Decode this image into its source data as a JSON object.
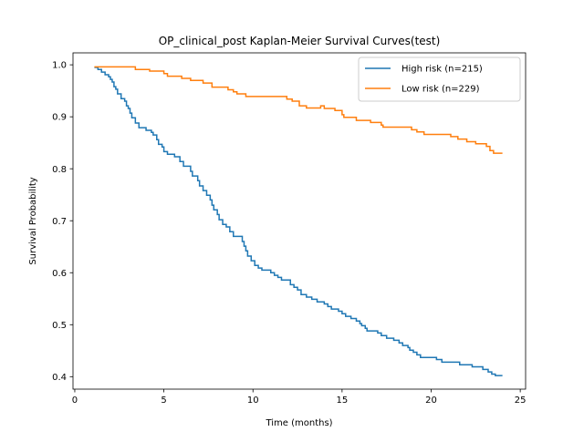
{
  "chart_data": {
    "type": "line",
    "step": true,
    "title": "OP_clinical_post Kaplan-Meier Survival Curves(test)",
    "xlabel": "Time (months)",
    "ylabel": "Survival Probability",
    "xlim": [
      -0.1,
      25.3
    ],
    "ylim": [
      0.376,
      1.023
    ],
    "x_ticks": [
      0,
      5,
      10,
      15,
      20,
      25
    ],
    "y_ticks": [
      0.4,
      0.5,
      0.6,
      0.7,
      0.8,
      0.9,
      1.0
    ],
    "x_tick_labels": [
      "0",
      "5",
      "10",
      "15",
      "20",
      "25"
    ],
    "y_tick_labels": [
      "0.4",
      "0.5",
      "0.6",
      "0.7",
      "0.8",
      "0.9",
      "1.0"
    ],
    "grid": false,
    "legend_position": "top-right",
    "series": [
      {
        "name": "High risk (n=215)",
        "color": "#1f77b4",
        "points": [
          [
            1.1,
            0.995
          ],
          [
            1.3,
            0.991
          ],
          [
            1.5,
            0.986
          ],
          [
            1.7,
            0.981
          ],
          [
            1.9,
            0.977
          ],
          [
            2.0,
            0.972
          ],
          [
            2.1,
            0.967
          ],
          [
            2.2,
            0.958
          ],
          [
            2.3,
            0.953
          ],
          [
            2.4,
            0.944
          ],
          [
            2.6,
            0.935
          ],
          [
            2.8,
            0.93
          ],
          [
            2.9,
            0.921
          ],
          [
            3.0,
            0.916
          ],
          [
            3.1,
            0.907
          ],
          [
            3.2,
            0.898
          ],
          [
            3.4,
            0.888
          ],
          [
            3.6,
            0.879
          ],
          [
            4.0,
            0.874
          ],
          [
            4.3,
            0.87
          ],
          [
            4.4,
            0.865
          ],
          [
            4.6,
            0.856
          ],
          [
            4.7,
            0.847
          ],
          [
            4.9,
            0.842
          ],
          [
            5.0,
            0.833
          ],
          [
            5.2,
            0.828
          ],
          [
            5.6,
            0.823
          ],
          [
            5.9,
            0.814
          ],
          [
            6.1,
            0.805
          ],
          [
            6.5,
            0.795
          ],
          [
            6.6,
            0.786
          ],
          [
            6.9,
            0.777
          ],
          [
            7.0,
            0.767
          ],
          [
            7.2,
            0.758
          ],
          [
            7.4,
            0.749
          ],
          [
            7.6,
            0.74
          ],
          [
            7.7,
            0.73
          ],
          [
            7.8,
            0.721
          ],
          [
            8.0,
            0.712
          ],
          [
            8.1,
            0.702
          ],
          [
            8.3,
            0.693
          ],
          [
            8.5,
            0.688
          ],
          [
            8.7,
            0.679
          ],
          [
            8.9,
            0.67
          ],
          [
            9.4,
            0.66
          ],
          [
            9.5,
            0.651
          ],
          [
            9.6,
            0.642
          ],
          [
            9.7,
            0.632
          ],
          [
            9.9,
            0.623
          ],
          [
            10.1,
            0.614
          ],
          [
            10.3,
            0.609
          ],
          [
            10.5,
            0.605
          ],
          [
            11.0,
            0.6
          ],
          [
            11.2,
            0.595
          ],
          [
            11.4,
            0.591
          ],
          [
            11.6,
            0.586
          ],
          [
            12.1,
            0.577
          ],
          [
            12.3,
            0.572
          ],
          [
            12.5,
            0.567
          ],
          [
            12.7,
            0.558
          ],
          [
            13.0,
            0.553
          ],
          [
            13.3,
            0.549
          ],
          [
            13.6,
            0.544
          ],
          [
            14.0,
            0.54
          ],
          [
            14.2,
            0.535
          ],
          [
            14.4,
            0.53
          ],
          [
            14.8,
            0.526
          ],
          [
            15.0,
            0.521
          ],
          [
            15.2,
            0.516
          ],
          [
            15.5,
            0.512
          ],
          [
            15.8,
            0.507
          ],
          [
            16.0,
            0.502
          ],
          [
            16.1,
            0.498
          ],
          [
            16.3,
            0.493
          ],
          [
            16.4,
            0.488
          ],
          [
            17.0,
            0.484
          ],
          [
            17.2,
            0.479
          ],
          [
            17.5,
            0.474
          ],
          [
            17.9,
            0.47
          ],
          [
            18.2,
            0.465
          ],
          [
            18.4,
            0.46
          ],
          [
            18.7,
            0.456
          ],
          [
            18.8,
            0.451
          ],
          [
            19.0,
            0.447
          ],
          [
            19.2,
            0.442
          ],
          [
            19.4,
            0.437
          ],
          [
            20.3,
            0.433
          ],
          [
            20.6,
            0.428
          ],
          [
            21.6,
            0.423
          ],
          [
            22.3,
            0.419
          ],
          [
            22.9,
            0.414
          ],
          [
            23.2,
            0.409
          ],
          [
            23.4,
            0.405
          ],
          [
            23.6,
            0.402
          ],
          [
            24.0,
            0.402
          ]
        ]
      },
      {
        "name": "Low risk (n=229)",
        "color": "#ff7f0e",
        "points": [
          [
            1.1,
            0.996
          ],
          [
            3.4,
            0.991
          ],
          [
            4.2,
            0.988
          ],
          [
            5.0,
            0.983
          ],
          [
            5.2,
            0.978
          ],
          [
            6.0,
            0.974
          ],
          [
            6.5,
            0.97
          ],
          [
            7.2,
            0.965
          ],
          [
            7.7,
            0.957
          ],
          [
            8.6,
            0.952
          ],
          [
            8.9,
            0.948
          ],
          [
            9.1,
            0.944
          ],
          [
            9.6,
            0.939
          ],
          [
            11.9,
            0.934
          ],
          [
            12.2,
            0.93
          ],
          [
            12.6,
            0.921
          ],
          [
            13.0,
            0.917
          ],
          [
            13.8,
            0.921
          ],
          [
            14.0,
            0.916
          ],
          [
            14.6,
            0.912
          ],
          [
            15.0,
            0.904
          ],
          [
            15.1,
            0.899
          ],
          [
            15.8,
            0.893
          ],
          [
            16.6,
            0.889
          ],
          [
            17.2,
            0.884
          ],
          [
            17.3,
            0.88
          ],
          [
            18.9,
            0.875
          ],
          [
            19.2,
            0.871
          ],
          [
            19.6,
            0.866
          ],
          [
            20.3,
            0.866
          ],
          [
            21.1,
            0.862
          ],
          [
            21.5,
            0.857
          ],
          [
            22.0,
            0.852
          ],
          [
            22.5,
            0.848
          ],
          [
            23.1,
            0.843
          ],
          [
            23.3,
            0.835
          ],
          [
            23.5,
            0.83
          ],
          [
            24.0,
            0.83
          ]
        ]
      }
    ]
  }
}
